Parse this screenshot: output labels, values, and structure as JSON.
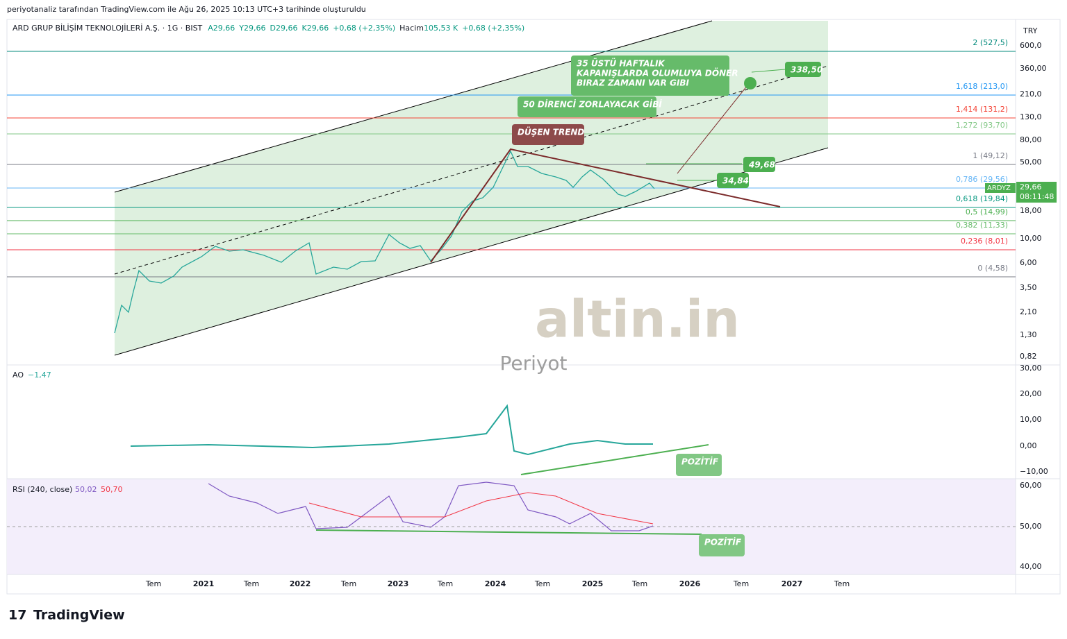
{
  "header": {
    "credit": "periyotanaliz tarafından TradingView.com ile Ağu 26, 2025 10:13 UTC+3 tarihinde oluşturuldu"
  },
  "legend": {
    "symbol": "ARD GRUP BİLİŞİM TEKNOLOJİLERİ A.Ş. · 1G · BIST",
    "items": [
      "A29,66",
      "Y29,66",
      "D29,66",
      "K29,66",
      "+0,68 (+2,35%)",
      "Hacim",
      "105,53 K",
      "+0,68 (+2,35%)"
    ]
  },
  "currency": "TRY",
  "price_axis": [
    "600,0",
    "360,00",
    "210,0",
    "130,0",
    "80,00",
    "50,00",
    "18,00",
    "10,00",
    "6,00",
    "3,50",
    "2,10",
    "1,30",
    "0,82"
  ],
  "last_price": {
    "ticker": "ARDYZ",
    "price": "29,66",
    "countdown": "08:11:48"
  },
  "fib_levels": [
    "2 (527,5)",
    "1,618 (213,0)",
    "1,414 (131,2)",
    "1,272 (93,70)",
    "1 (49,12)",
    "0,786 (29,56)",
    "0,618 (19,84)",
    "0,5 (14,99)",
    "0,382 (11,33)",
    "0,236 (8,01)",
    "0 (4,58)"
  ],
  "annotations": {
    "weekly_note": [
      "35 ÜSTÜ HAFTALIK",
      "KAPANIŞLARDA OLUMLUYA DÖNER",
      "BIRAZ ZAMANI VAR GIBI"
    ],
    "resistance_note": "50 DİRENCİ ZORLAYACAK GİBİ",
    "trend_note": "DÜŞEN TREND",
    "target": "338,50",
    "level_high": "49,68",
    "level_low": "34,84",
    "ao_note": "POZİTİF",
    "rsi_note": "POZİTİF"
  },
  "watermark": {
    "brand": "altin.in",
    "sub": "Periyot"
  },
  "ao": {
    "name": "AO",
    "value": "−1,47",
    "axis": [
      "30,00",
      "20,00",
      "10,00",
      "0,00",
      "−10,00"
    ]
  },
  "rsi": {
    "name": "RSI (240, close)",
    "value": "50,02",
    "ma": "50,70",
    "axis": [
      "60,00",
      "50,00",
      "40,00"
    ]
  },
  "time_axis": [
    "Tem",
    "2021",
    "Tem",
    "2022",
    "Tem",
    "2023",
    "Tem",
    "2024",
    "Tem",
    "2025",
    "Tem",
    "2026",
    "Tem",
    "2027",
    "Tem"
  ],
  "footer": {
    "logo": "TradingView"
  }
}
